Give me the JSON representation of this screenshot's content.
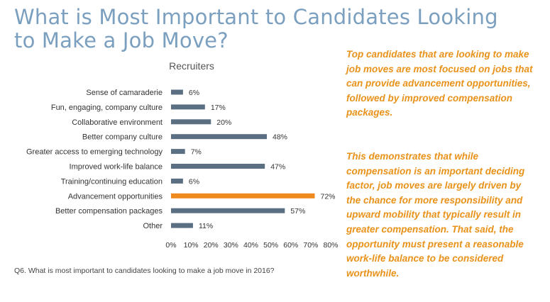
{
  "page": {
    "title": "What is Most Important to Candidates Looking to Make a Job Move?",
    "footnote": "Q6. What is most important to candidates looking to make a job move in 2016?",
    "callouts": [
      "Top candidates that are looking to make job moves are most focused on jobs that can provide advancement opportunities, followed by improved compensation packages.",
      "This demonstrates that while compensation is an important deciding factor, job moves are largely driven by the chance for more responsibility and upward mobility that typically result in greater compensation. That said, the opportunity must present a reasonable work-life balance to be considered worthwhile."
    ]
  },
  "colors": {
    "bar": "#5b6f83",
    "highlight": "#ef8a1e",
    "title": "#7b9fbf",
    "callout": "#e8921a"
  },
  "chart_data": {
    "type": "bar",
    "orientation": "horizontal",
    "title": "Recruiters",
    "categories": [
      "Sense of camaraderie",
      "Fun, engaging, company culture",
      "Collaborative environment",
      "Better company culture",
      "Greater access to emerging technology",
      "Improved work-life balance",
      "Training/continuing education",
      "Advancement opportunities",
      "Better compensation packages",
      "Other"
    ],
    "values": [
      6,
      17,
      20,
      48,
      7,
      47,
      6,
      72,
      57,
      11
    ],
    "data_labels": [
      "6%",
      "17%",
      "20%",
      "48%",
      "7%",
      "47%",
      "6%",
      "72%",
      "57%",
      "11%"
    ],
    "highlight_category": "Advancement opportunities",
    "xlim": [
      0,
      80
    ],
    "x_ticks": [
      "0%",
      "10%",
      "20%",
      "30%",
      "40%",
      "50%",
      "60%",
      "70%",
      "80%"
    ],
    "grid": false,
    "legend": "none"
  }
}
